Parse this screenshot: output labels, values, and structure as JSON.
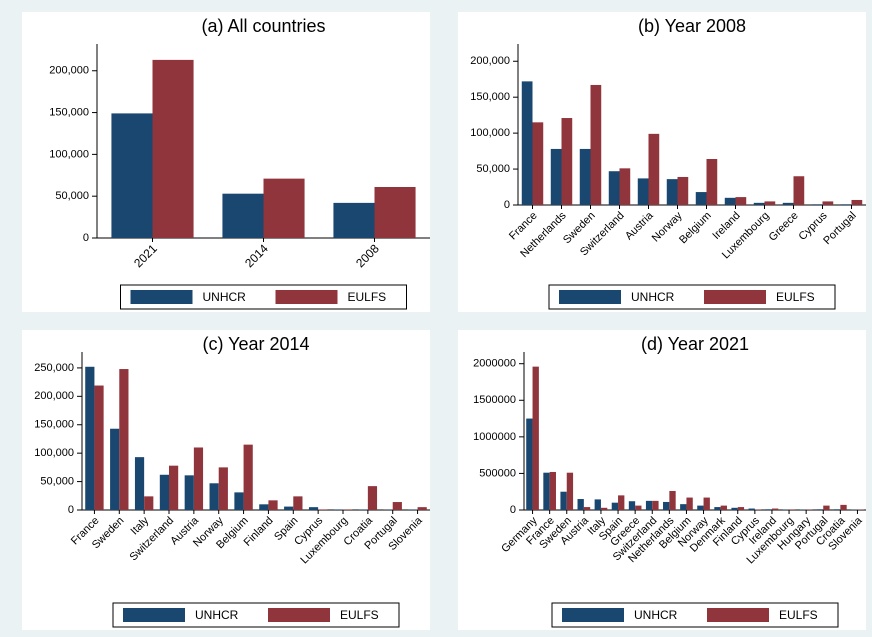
{
  "chart_data": [
    {
      "type": "bar",
      "title": "(a) All countries",
      "categories": [
        "2021",
        "2014",
        "2008"
      ],
      "series": [
        {
          "name": "UNHCR",
          "color": "#1a476f",
          "values": [
            149000,
            53000,
            42000
          ]
        },
        {
          "name": "EULFS",
          "color": "#90353b",
          "values": [
            213000,
            71000,
            61000
          ]
        }
      ],
      "ylim": [
        0,
        232000
      ],
      "yticks": [
        0,
        {
          "value": 50000,
          "label": "50,000"
        },
        {
          "value": 100000,
          "label": "100,000"
        },
        {
          "value": 150000,
          "label": "150,000"
        },
        {
          "value": 200000,
          "label": "200,000"
        }
      ],
      "legend": "bottom"
    },
    {
      "type": "bar",
      "title": "(b) Year 2008",
      "categories": [
        "France",
        "Netherlands",
        "Sweden",
        "Switzerland",
        "Austria",
        "Norway",
        "Belgium",
        "Ireland",
        "Luxembourg",
        "Greece",
        "Cyprus",
        "Portugal"
      ],
      "series": [
        {
          "name": "UNHCR",
          "color": "#1a476f",
          "values": [
            172000,
            78000,
            78000,
            47000,
            37000,
            36000,
            18000,
            10000,
            3000,
            3000,
            1000,
            1000
          ]
        },
        {
          "name": "EULFS",
          "color": "#90353b",
          "values": [
            115000,
            121000,
            167000,
            51000,
            99000,
            39000,
            64000,
            11000,
            5000,
            40000,
            5000,
            7000
          ]
        }
      ],
      "ylim": [
        0,
        224000
      ],
      "yticks": [
        0,
        {
          "value": 50000,
          "label": "50,000"
        },
        {
          "value": 100000,
          "label": "100,000"
        },
        {
          "value": 150000,
          "label": "150,000"
        },
        {
          "value": 200000,
          "label": "200,000"
        }
      ],
      "legend": "bottom"
    },
    {
      "type": "bar",
      "title": "(c) Year 2014",
      "categories": [
        "France",
        "Sweden",
        "Italy",
        "Switzerland",
        "Austria",
        "Norway",
        "Belgium",
        "Finland",
        "Spain",
        "Cyprus",
        "Luxembourg",
        "Croatia",
        "Portugal",
        "Slovenia"
      ],
      "series": [
        {
          "name": "UNHCR",
          "color": "#1a476f",
          "values": [
            252000,
            143000,
            93000,
            62000,
            61000,
            47000,
            31000,
            10000,
            6000,
            5000,
            1000,
            1000,
            500,
            1000
          ]
        },
        {
          "name": "EULFS",
          "color": "#90353b",
          "values": [
            219000,
            248000,
            24000,
            78000,
            110000,
            75000,
            115000,
            17000,
            24000,
            1000,
            1000,
            42000,
            14000,
            5000
          ]
        }
      ],
      "ylim": [
        0,
        278000
      ],
      "yticks": [
        0,
        {
          "value": 50000,
          "label": "50,000"
        },
        {
          "value": 100000,
          "label": "100,000"
        },
        {
          "value": 150000,
          "label": "150,000"
        },
        {
          "value": 200000,
          "label": "200,000"
        },
        {
          "value": 250000,
          "label": "250,000"
        }
      ],
      "legend": "bottom"
    },
    {
      "type": "bar",
      "title": "(d) Year 2021",
      "categories": [
        "Germany",
        "France",
        "Sweden",
        "Austria",
        "Italy",
        "Spain",
        "Greece",
        "Switzerland",
        "Netherlands",
        "Belgium",
        "Norway",
        "Denmark",
        "Finland",
        "Cyprus",
        "Ireland",
        "Luxembourg",
        "Hungary",
        "Portugal",
        "Croatia",
        "Slovenia"
      ],
      "series": [
        {
          "name": "UNHCR",
          "color": "#1a476f",
          "values": [
            1250000,
            510000,
            250000,
            150000,
            145000,
            100000,
            120000,
            125000,
            110000,
            80000,
            60000,
            40000,
            30000,
            20000,
            10000,
            5000,
            5000,
            10000,
            10000,
            5000
          ]
        },
        {
          "name": "EULFS",
          "color": "#90353b",
          "values": [
            1960000,
            520000,
            510000,
            40000,
            30000,
            200000,
            60000,
            125000,
            260000,
            170000,
            170000,
            60000,
            40000,
            5000,
            20000,
            8000,
            5000,
            60000,
            70000,
            5000
          ]
        }
      ],
      "ylim": [
        0,
        2160000
      ],
      "yticks": [
        0,
        500000,
        1000000,
        1500000,
        2000000
      ],
      "legend": "bottom"
    }
  ]
}
